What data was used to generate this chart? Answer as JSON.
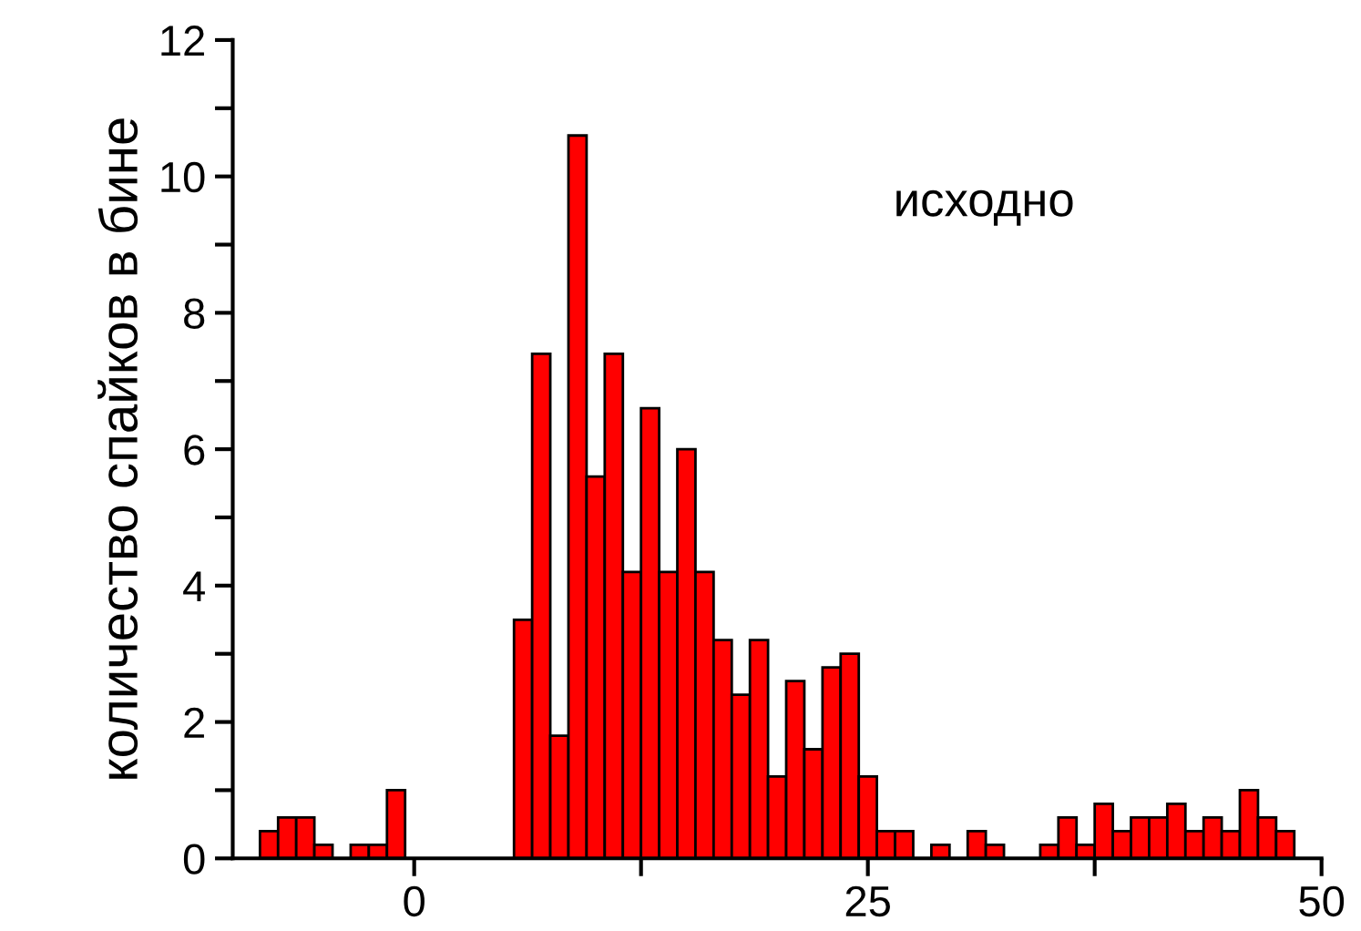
{
  "chart_data": {
    "type": "histogram",
    "ylabel": "количество спайков в бине",
    "annotations": [
      "исходно"
    ],
    "bins": [
      -8.5,
      -7.5,
      -6.5,
      -5.5,
      -4.5,
      -3.5,
      -2.5,
      -1.5,
      -0.5,
      0.5,
      1.5,
      2.5,
      3.5,
      4.5,
      5.5,
      6.5,
      7.5,
      8.5,
      9.5,
      10.5,
      11.5,
      12.5,
      13.5,
      14.5,
      15.5,
      16.5,
      17.5,
      18.5,
      19.5,
      20.5,
      21.5,
      22.5,
      23.5,
      24.5,
      25.5,
      26.5,
      27.5,
      28.5,
      29.5,
      30.5,
      31.5,
      32.5,
      33.5,
      34.5,
      35.5,
      36.5,
      37.5,
      38.5,
      39.5,
      40.5,
      41.5,
      42.5,
      43.5,
      44.5,
      45.5,
      46.5,
      47.5,
      48.5
    ],
    "values": [
      0.4,
      0.6,
      0.6,
      0.2,
      0,
      0.2,
      0.2,
      1.0,
      0,
      0,
      0,
      0,
      0,
      0,
      3.5,
      7.4,
      1.8,
      10.6,
      5.6,
      7.4,
      4.2,
      6.6,
      4.2,
      6.0,
      4.2,
      3.2,
      2.4,
      3.2,
      1.2,
      2.6,
      1.6,
      2.8,
      3.0,
      1.2,
      0.4,
      0.4,
      0,
      0.2,
      0,
      0.4,
      0.2,
      0,
      0,
      0.2,
      0.6,
      0.2,
      0.8,
      0.4,
      0.6,
      0.6,
      0.8,
      0.4,
      0.6,
      0.4,
      1.0,
      0.6,
      0.4
    ],
    "color": "#ff0000",
    "xlim": [
      -10,
      50
    ],
    "xticks": [
      0,
      {
        "value": 12.5,
        "label": null
      },
      25,
      {
        "value": 37.5,
        "label": null
      },
      50
    ],
    "ylim": [
      0,
      12
    ],
    "yticks": [
      0,
      {
        "value": 1,
        "label": null
      },
      2,
      {
        "value": 3,
        "label": null
      },
      4,
      {
        "value": 5,
        "label": null
      },
      6,
      {
        "value": 7,
        "label": null
      },
      8,
      {
        "value": 9,
        "label": null
      },
      10,
      {
        "value": 11,
        "label": null
      },
      12
    ],
    "grid": false
  }
}
